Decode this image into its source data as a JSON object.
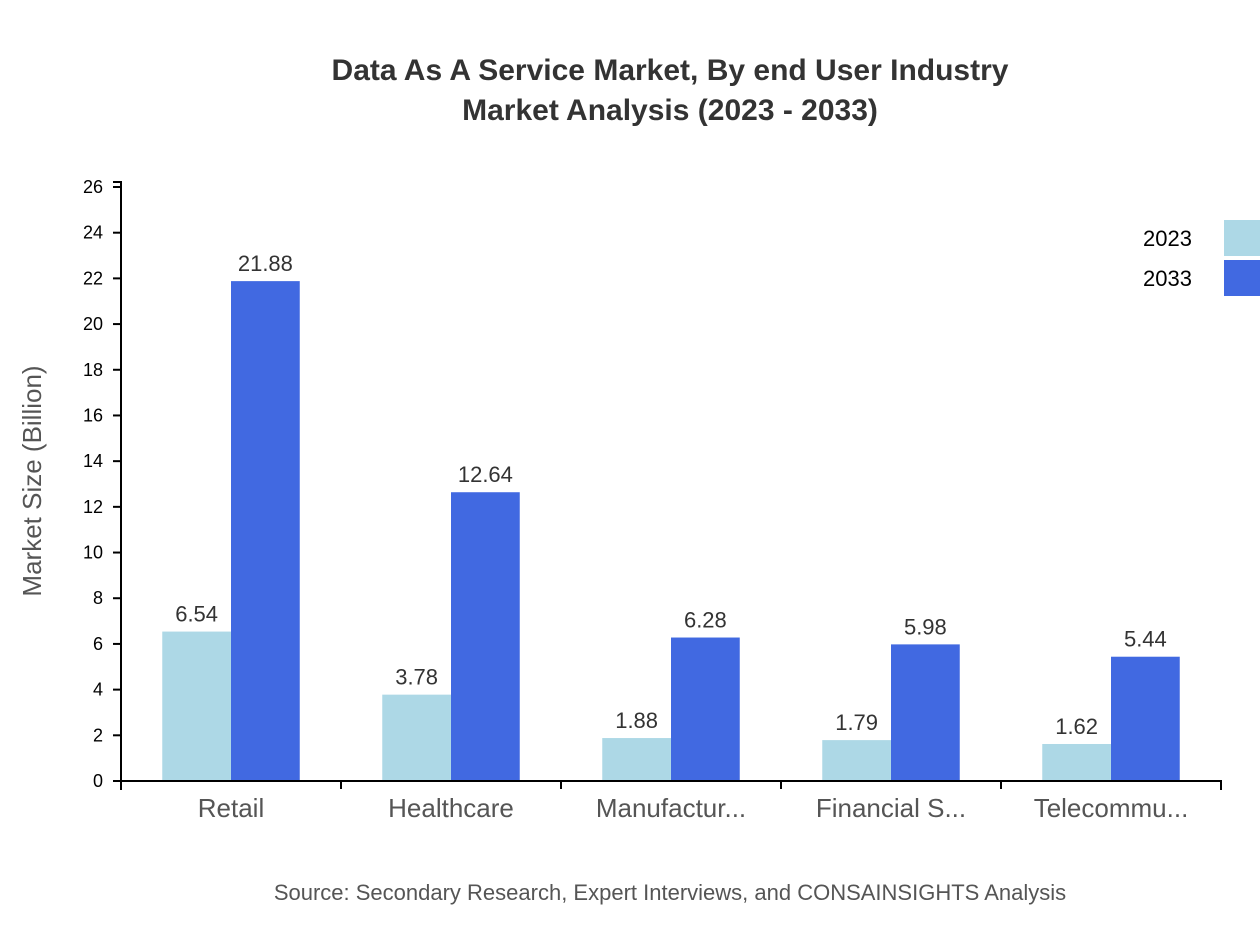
{
  "chart_data": {
    "type": "bar",
    "title": "Data As A Service Market, By end User Industry",
    "subtitle": "Market Analysis (2023 - 2033)",
    "ylabel": "Market Size (Billion)",
    "xlabel": "",
    "ylim": [
      0,
      26
    ],
    "yticks": [
      0,
      2,
      4,
      6,
      8,
      10,
      12,
      14,
      16,
      18,
      20,
      22,
      24,
      26
    ],
    "grid": false,
    "legend_position": "top-right",
    "categories": [
      "Retail",
      "Healthcare",
      "Manufactur...",
      "Financial S...",
      "Telecommu..."
    ],
    "series": [
      {
        "name": "2023",
        "color": "#add8e6",
        "values": [
          6.54,
          3.78,
          1.88,
          1.79,
          1.62
        ]
      },
      {
        "name": "2033",
        "color": "#4169e1",
        "values": [
          21.88,
          12.64,
          6.28,
          5.98,
          5.44
        ]
      }
    ],
    "source": "Source: Secondary Research, Expert Interviews, and CONSAINSIGHTS Analysis"
  }
}
